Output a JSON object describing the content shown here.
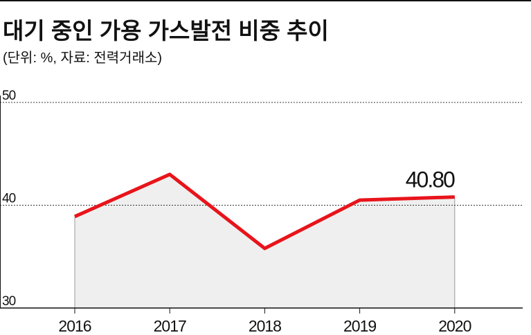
{
  "chart_data": {
    "type": "line",
    "title": "대기 중인 가용 가스발전 비중 추이",
    "subtitle": "(단위: %, 자료: 전력거래소)",
    "categories": [
      "2016",
      "2017",
      "2018",
      "2019",
      "2020"
    ],
    "series": [
      {
        "values": [
          38.9,
          43.0,
          35.8,
          40.5,
          40.8
        ],
        "value_labels": [
          null,
          null,
          null,
          null,
          "40.80"
        ],
        "color": "#e8141b"
      }
    ],
    "area_color": "#efefef",
    "ylim": [
      30,
      50
    ],
    "yticks": [
      30,
      40,
      50
    ],
    "grid": true
  }
}
